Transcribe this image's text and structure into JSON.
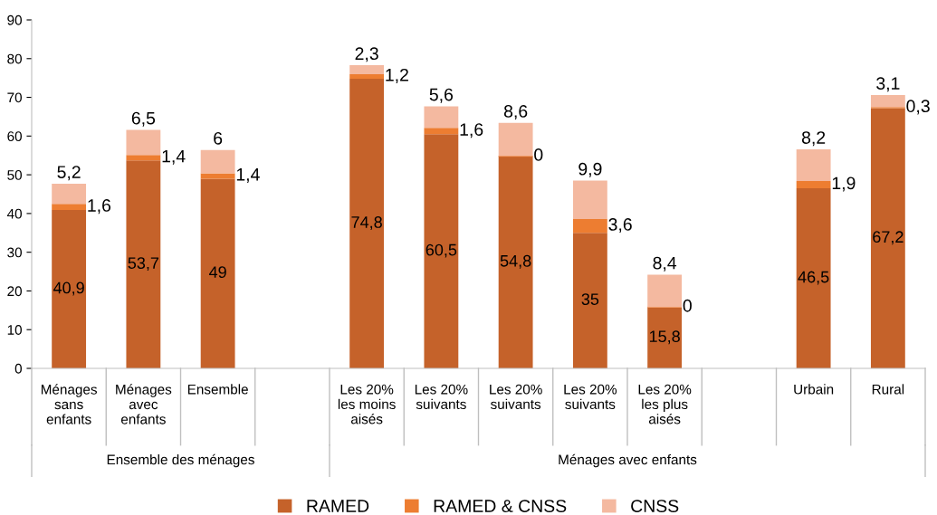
{
  "chart_data": {
    "type": "bar",
    "stacked": true,
    "categories": [
      "Ménages\nsans\nenfants",
      "Ménages\navec\nenfants",
      "Ensemble",
      null,
      "Les 20%\nles moins\naisés",
      "Les 20%\nsuivants",
      "Les 20%\nsuivants",
      "Les 20%\nsuivants",
      "Les 20%\nles plus\naisés",
      null,
      "Urbain",
      "Rural"
    ],
    "series": [
      {
        "name": "RAMED",
        "color": "#c5622a",
        "values": [
          40.9,
          53.7,
          49,
          null,
          74.8,
          60.5,
          54.8,
          35,
          15.8,
          null,
          46.5,
          67.2
        ],
        "value_labels": [
          "40,9",
          "53,7",
          "49",
          null,
          "74,8",
          "60,5",
          "54,8",
          "35",
          "15,8",
          null,
          "46,5",
          "67,2"
        ]
      },
      {
        "name": "RAMED & CNSS",
        "color": "#ed7d31",
        "values": [
          1.6,
          1.4,
          1.4,
          null,
          1.2,
          1.6,
          0,
          3.6,
          0,
          null,
          1.9,
          0.3
        ],
        "value_labels": [
          "1,6",
          "1,4",
          "1,4",
          null,
          "1,2",
          "1,6",
          "0",
          "3,6",
          "0",
          null,
          "1,9",
          "0,3"
        ]
      },
      {
        "name": "CNSS",
        "color": "#f4b9a0",
        "values": [
          5.2,
          6.5,
          6,
          null,
          2.3,
          5.6,
          8.6,
          9.9,
          8.4,
          null,
          8.2,
          3.1
        ],
        "value_labels": [
          "5,2",
          "6,5",
          "6",
          null,
          "2,3",
          "5,6",
          "8,6",
          "9,9",
          "8,4",
          null,
          "8,2",
          "3,1"
        ]
      }
    ],
    "annotations": [
      "Ensemble des ménages",
      "Ménages avec enfants"
    ],
    "ylim": [
      0,
      90
    ],
    "yticks": [
      0,
      10,
      20,
      30,
      40,
      50,
      60,
      70,
      80,
      90
    ],
    "legend": "bottom"
  }
}
